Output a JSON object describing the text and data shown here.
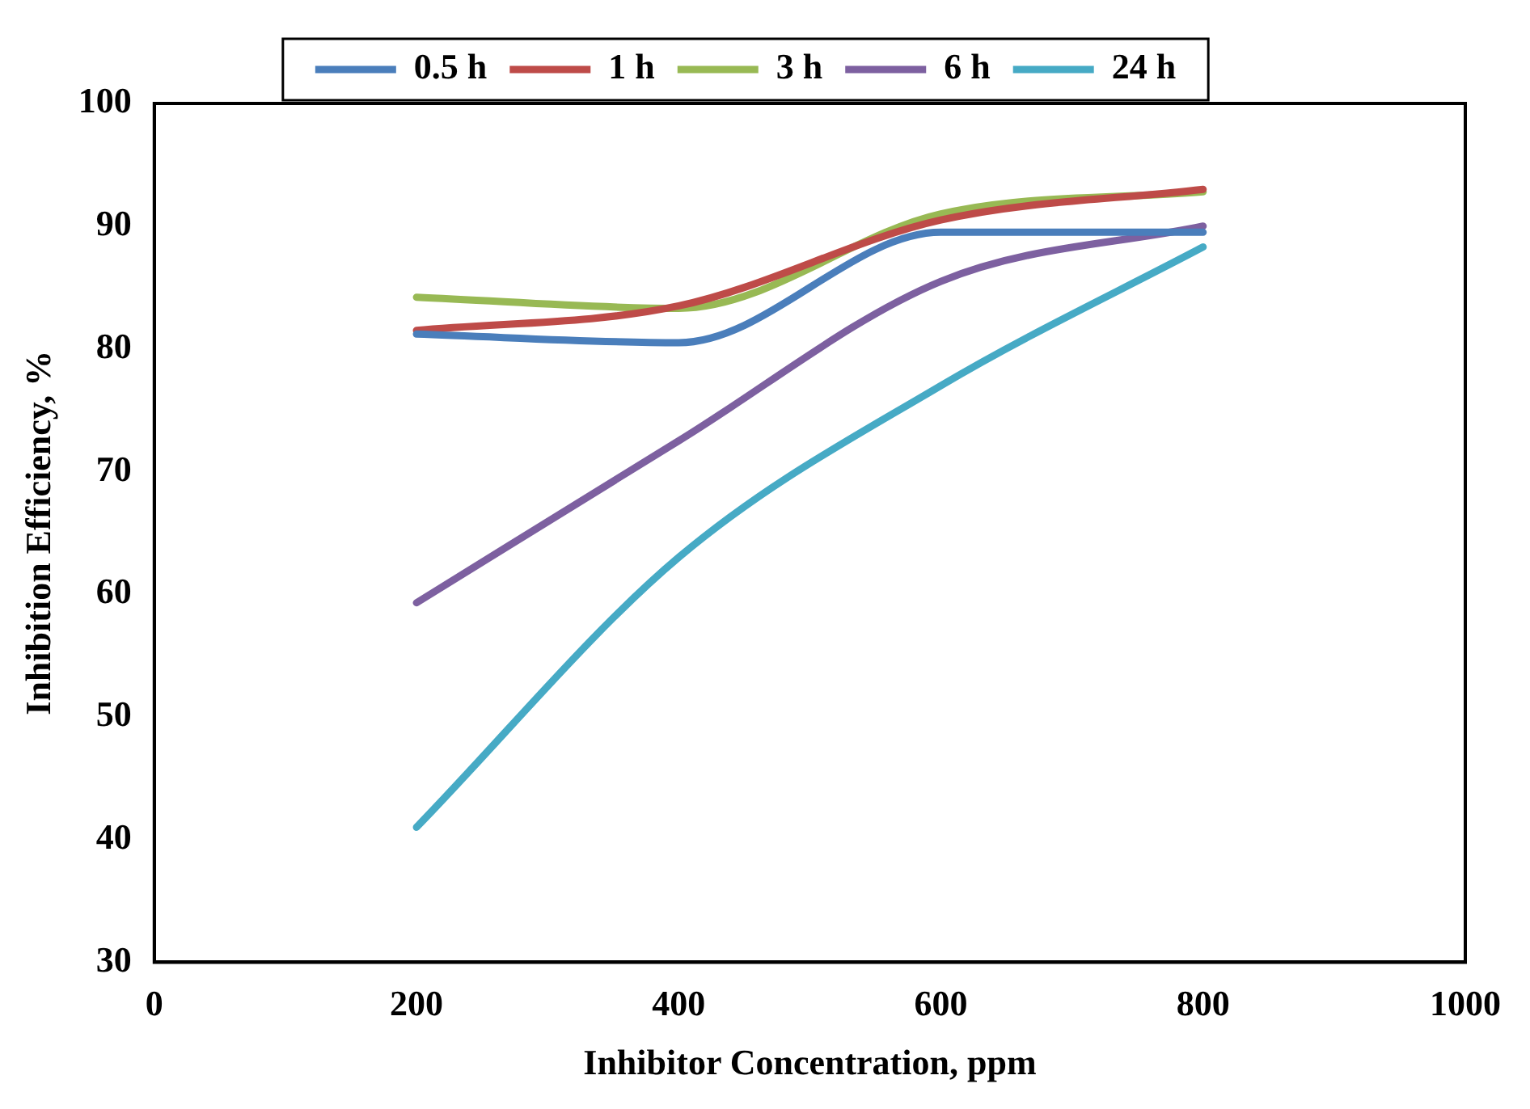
{
  "chart_data": {
    "type": "line",
    "xlabel": "Inhibitor Concentration, ppm",
    "ylabel": "Inhibition Efficiency, %",
    "x": [
      200,
      400,
      600,
      800
    ],
    "xlim": [
      0,
      1000
    ],
    "xticks": [
      0,
      200,
      400,
      600,
      800,
      1000
    ],
    "ylim": [
      30,
      100
    ],
    "yticks": [
      30,
      40,
      50,
      60,
      70,
      80,
      90,
      100
    ],
    "grid": false,
    "legend": "top",
    "marker": "none",
    "line_style": "solid",
    "series": [
      {
        "name": "0.5 h",
        "color": "#4a7ebb",
        "values": [
          81.2,
          80.5,
          89.5,
          89.5
        ]
      },
      {
        "name": "1 h",
        "color": "#be4b48",
        "values": [
          81.5,
          83.5,
          90.5,
          93
        ]
      },
      {
        "name": "3 h",
        "color": "#98b954",
        "values": [
          84.2,
          83.3,
          91,
          92.8
        ]
      },
      {
        "name": "6 h",
        "color": "#7d60a0",
        "values": [
          59.3,
          72.5,
          85.5,
          90
        ]
      },
      {
        "name": "24 h",
        "color": "#46aac5",
        "values": [
          41,
          63,
          77,
          88.3
        ]
      }
    ]
  }
}
